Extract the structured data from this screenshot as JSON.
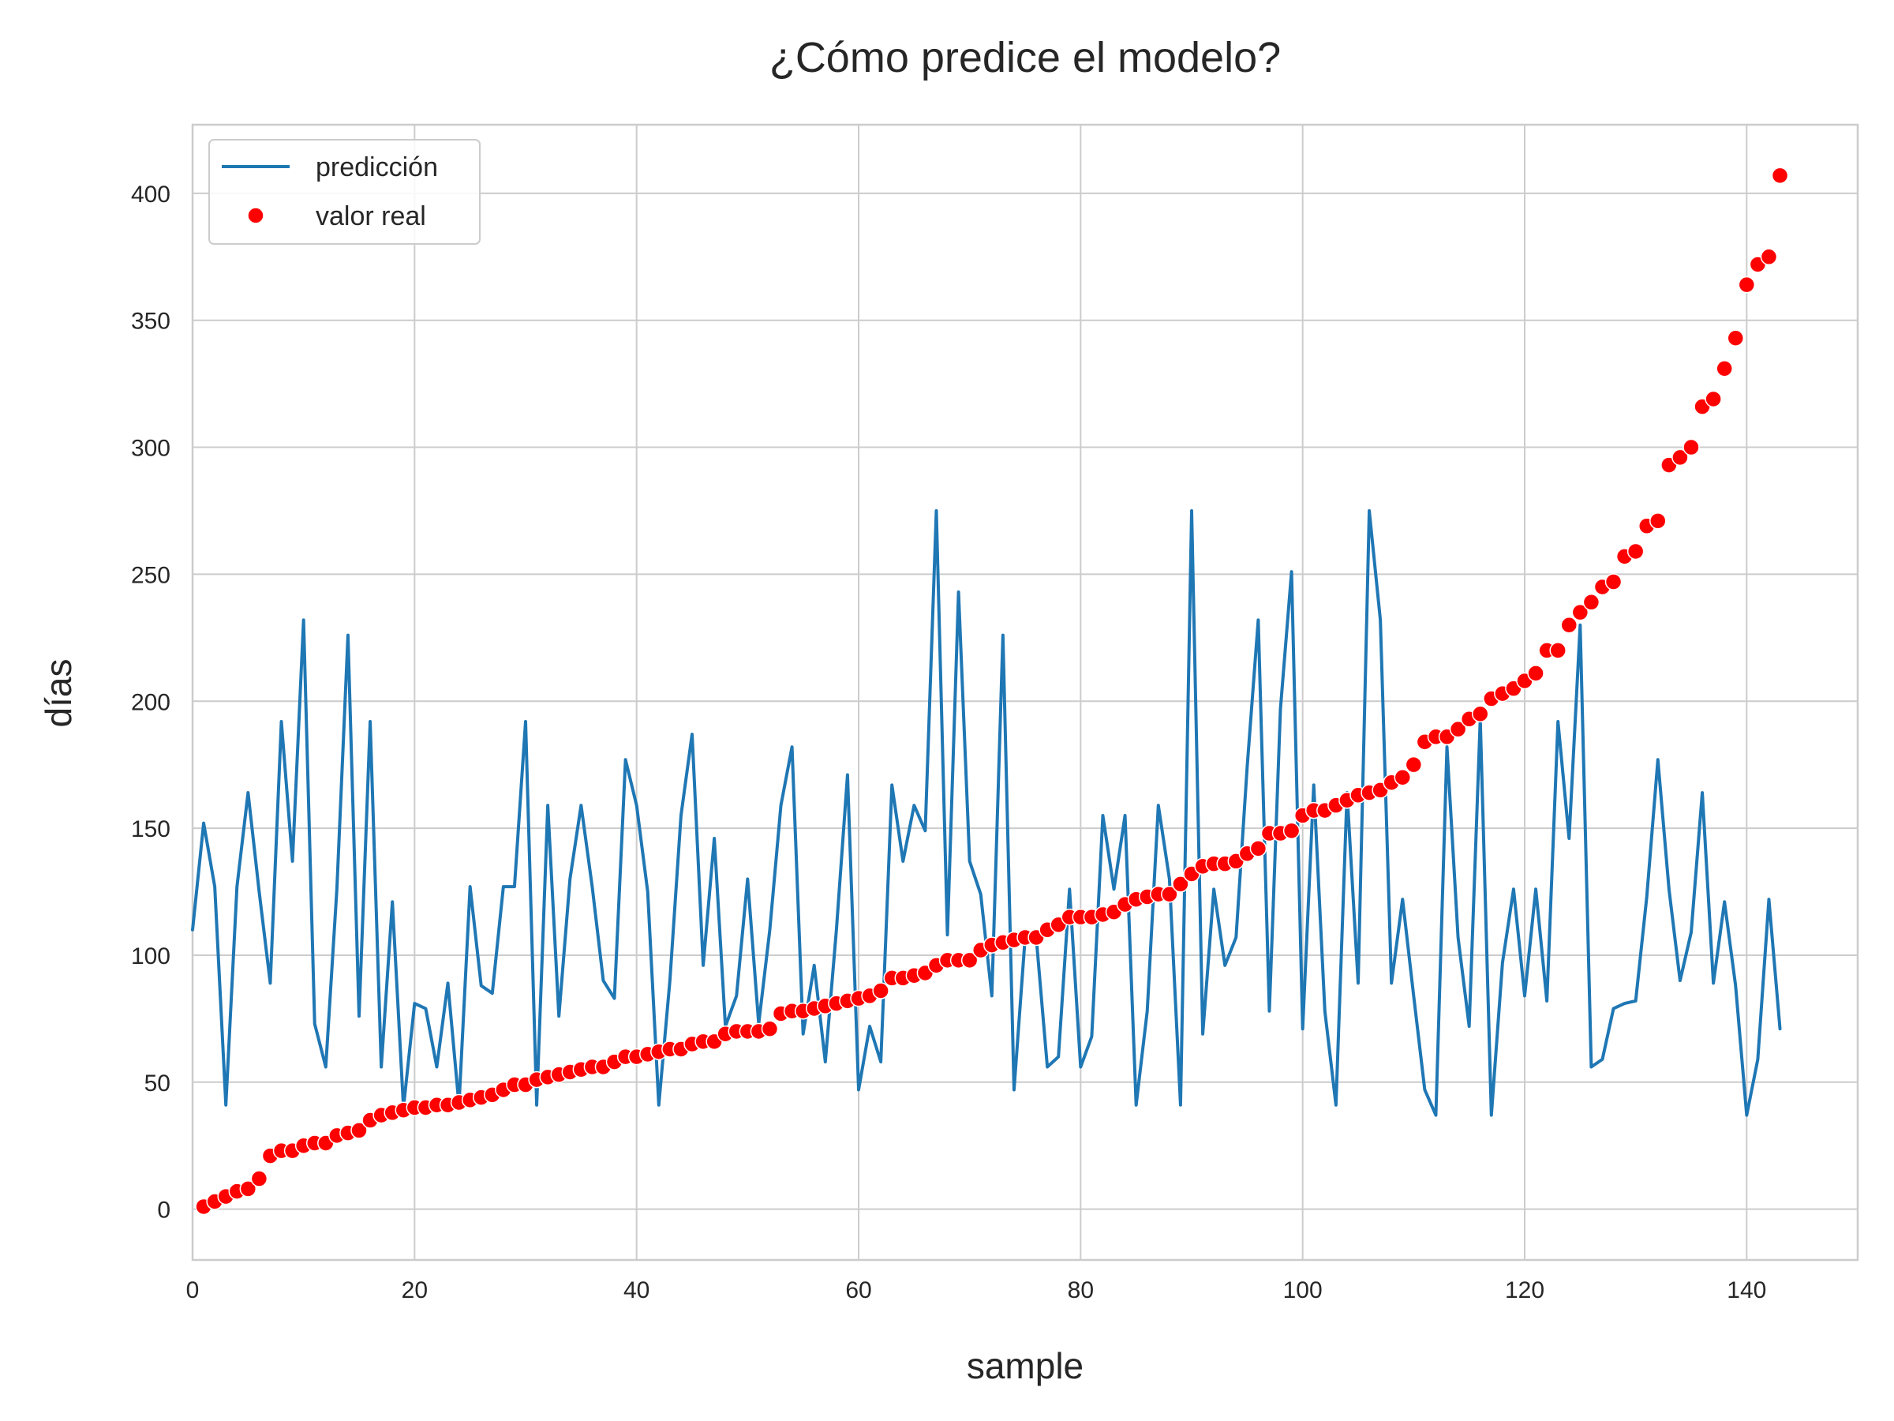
{
  "chart_data": {
    "type": "line",
    "title": "¿Cómo predice el modelo?",
    "xlabel": "sample",
    "ylabel": "días",
    "xlim": [
      0,
      150
    ],
    "ylim": [
      -20,
      427
    ],
    "xticks": [
      0,
      20,
      40,
      60,
      80,
      100,
      120,
      140
    ],
    "yticks": [
      0,
      50,
      100,
      150,
      200,
      250,
      300,
      350,
      400
    ],
    "grid": true,
    "legend_position": "top-left",
    "colors": {
      "prediction": "#1f77b4",
      "actual": "#ff0000",
      "grid": "#cccccc",
      "axes": "#cccccc"
    },
    "series": [
      {
        "name": "predicción",
        "kind": "line",
        "x_start": 0,
        "values": [
          110,
          152,
          127,
          41,
          127,
          164,
          125,
          89,
          192,
          137,
          232,
          73,
          56,
          126,
          226,
          76,
          192,
          56,
          121,
          40,
          81,
          79,
          56,
          89,
          41,
          127,
          88,
          85,
          127,
          127,
          192,
          41,
          159,
          76,
          130,
          159,
          127,
          90,
          83,
          177,
          159,
          125,
          41,
          90,
          155,
          187,
          96,
          146,
          72,
          84,
          130,
          73,
          110,
          159,
          182,
          69,
          96,
          58,
          110,
          171,
          47,
          72,
          58,
          167,
          137,
          159,
          149,
          275,
          108,
          243,
          137,
          124,
          84,
          226,
          47,
          107,
          107,
          56,
          60,
          126,
          56,
          68,
          155,
          126,
          155,
          41,
          78,
          159,
          130,
          41,
          275,
          69,
          126,
          96,
          107,
          174,
          232,
          78,
          197,
          251,
          71,
          167,
          78,
          41,
          164,
          89,
          275,
          232,
          89,
          122,
          84,
          47,
          37,
          182,
          107,
          72,
          193,
          37,
          97,
          126,
          84,
          126,
          82,
          192,
          146,
          230,
          56,
          59,
          79,
          81,
          82,
          123,
          177,
          126,
          90,
          109,
          164,
          89,
          121,
          88,
          37,
          59,
          122,
          71
        ]
      },
      {
        "name": "valor real",
        "kind": "scatter",
        "x_start": 1,
        "values": [
          1,
          3,
          5,
          7,
          8,
          12,
          21,
          23,
          23,
          25,
          26,
          26,
          29,
          30,
          31,
          35,
          37,
          38,
          39,
          40,
          40,
          41,
          41,
          42,
          43,
          44,
          45,
          47,
          49,
          49,
          51,
          52,
          53,
          54,
          55,
          56,
          56,
          58,
          60,
          60,
          61,
          62,
          63,
          63,
          65,
          66,
          66,
          69,
          70,
          70,
          70,
          71,
          77,
          78,
          78,
          79,
          80,
          81,
          82,
          83,
          84,
          86,
          91,
          91,
          92,
          93,
          96,
          98,
          98,
          98,
          102,
          104,
          105,
          106,
          107,
          107,
          110,
          112,
          115,
          115,
          115,
          116,
          117,
          120,
          122,
          123,
          124,
          124,
          128,
          132,
          135,
          136,
          136,
          137,
          140,
          142,
          148,
          148,
          149,
          155,
          157,
          157,
          159,
          161,
          163,
          164,
          165,
          168,
          170,
          175,
          184,
          186,
          186,
          189,
          193,
          195,
          201,
          203,
          205,
          208,
          211,
          220,
          220,
          230,
          235,
          239,
          245,
          247,
          257,
          259,
          269,
          271,
          293,
          296,
          300,
          316,
          319,
          331,
          343,
          364,
          372,
          375,
          407
        ]
      }
    ]
  }
}
